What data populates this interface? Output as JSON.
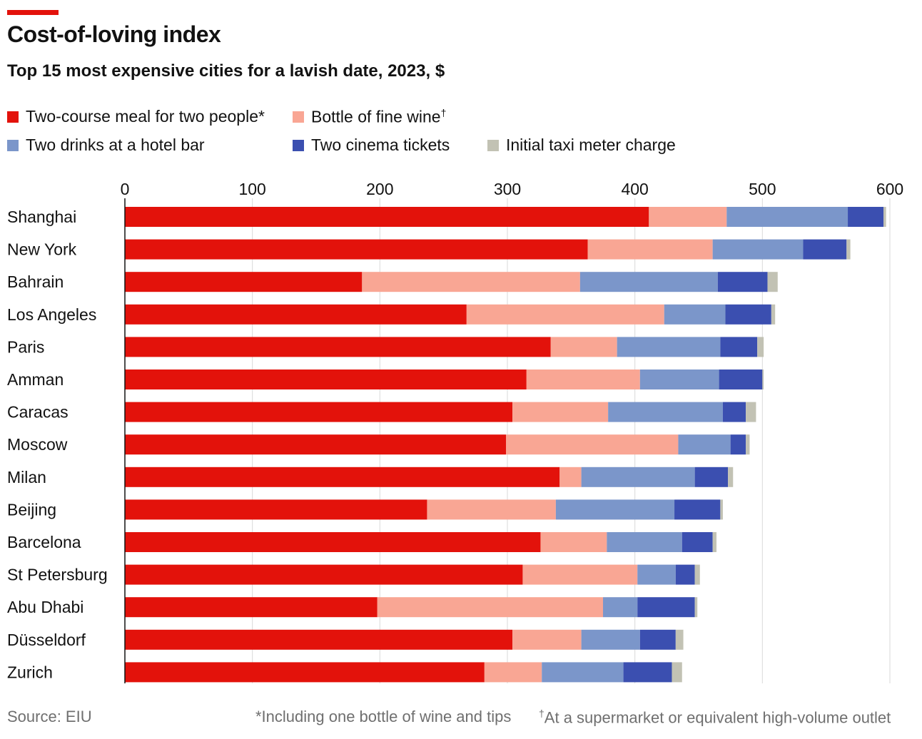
{
  "title": "Cost-of-loving index",
  "subtitle": "Top 15 most expensive cities for a lavish date, 2023, $",
  "legend": [
    {
      "label": "Two-course meal for two people*",
      "color": "#e3120b"
    },
    {
      "label": "Bottle of fine wine",
      "sup": "†",
      "color": "#f9a694"
    },
    {
      "label": "Two drinks at a hotel bar",
      "color": "#7b96ca"
    },
    {
      "label": "Two cinema tickets",
      "color": "#3b4fb0"
    },
    {
      "label": "Initial taxi meter charge",
      "color": "#c2c2b4"
    }
  ],
  "footer": {
    "source": "Source: EIU",
    "note1": "*Including one bottle of wine and tips",
    "note2_sup": "†",
    "note2": "At a supermarket or equivalent high-volume outlet"
  },
  "chart_data": {
    "type": "bar",
    "orientation": "horizontal",
    "stacked": true,
    "xlim": [
      0,
      600
    ],
    "xticks": [
      0,
      100,
      200,
      300,
      400,
      500,
      600
    ],
    "grid": true,
    "legend_position": "top",
    "categories": [
      "Shanghai",
      "New York",
      "Bahrain",
      "Los Angeles",
      "Paris",
      "Amman",
      "Caracas",
      "Moscow",
      "Milan",
      "Beijing",
      "Barcelona",
      "St Petersburg",
      "Abu Dhabi",
      "Düsseldorf",
      "Zurich"
    ],
    "series": [
      {
        "name": "Two-course meal for two people*",
        "color": "#e3120b",
        "values": [
          411,
          363,
          186,
          268,
          334,
          315,
          304,
          299,
          341,
          237,
          326,
          312,
          198,
          304,
          282
        ]
      },
      {
        "name": "Bottle of fine wine",
        "color": "#f9a694",
        "values": [
          61,
          98,
          171,
          155,
          52,
          89,
          75,
          135,
          17,
          101,
          52,
          90,
          177,
          54,
          45
        ]
      },
      {
        "name": "Two drinks at a hotel bar",
        "color": "#7b96ca",
        "values": [
          95,
          71,
          108,
          48,
          81,
          62,
          90,
          41,
          89,
          93,
          59,
          30,
          27,
          46,
          64
        ]
      },
      {
        "name": "Two cinema tickets",
        "color": "#3b4fb0",
        "values": [
          28,
          34,
          39,
          36,
          29,
          34,
          18,
          12,
          26,
          36,
          24,
          15,
          45,
          28,
          38
        ]
      },
      {
        "name": "Initial taxi meter charge",
        "color": "#c2c2b4",
        "values": [
          2,
          3,
          8,
          3,
          5,
          1,
          8,
          3,
          4,
          2,
          3,
          4,
          2,
          6,
          8
        ]
      }
    ]
  }
}
